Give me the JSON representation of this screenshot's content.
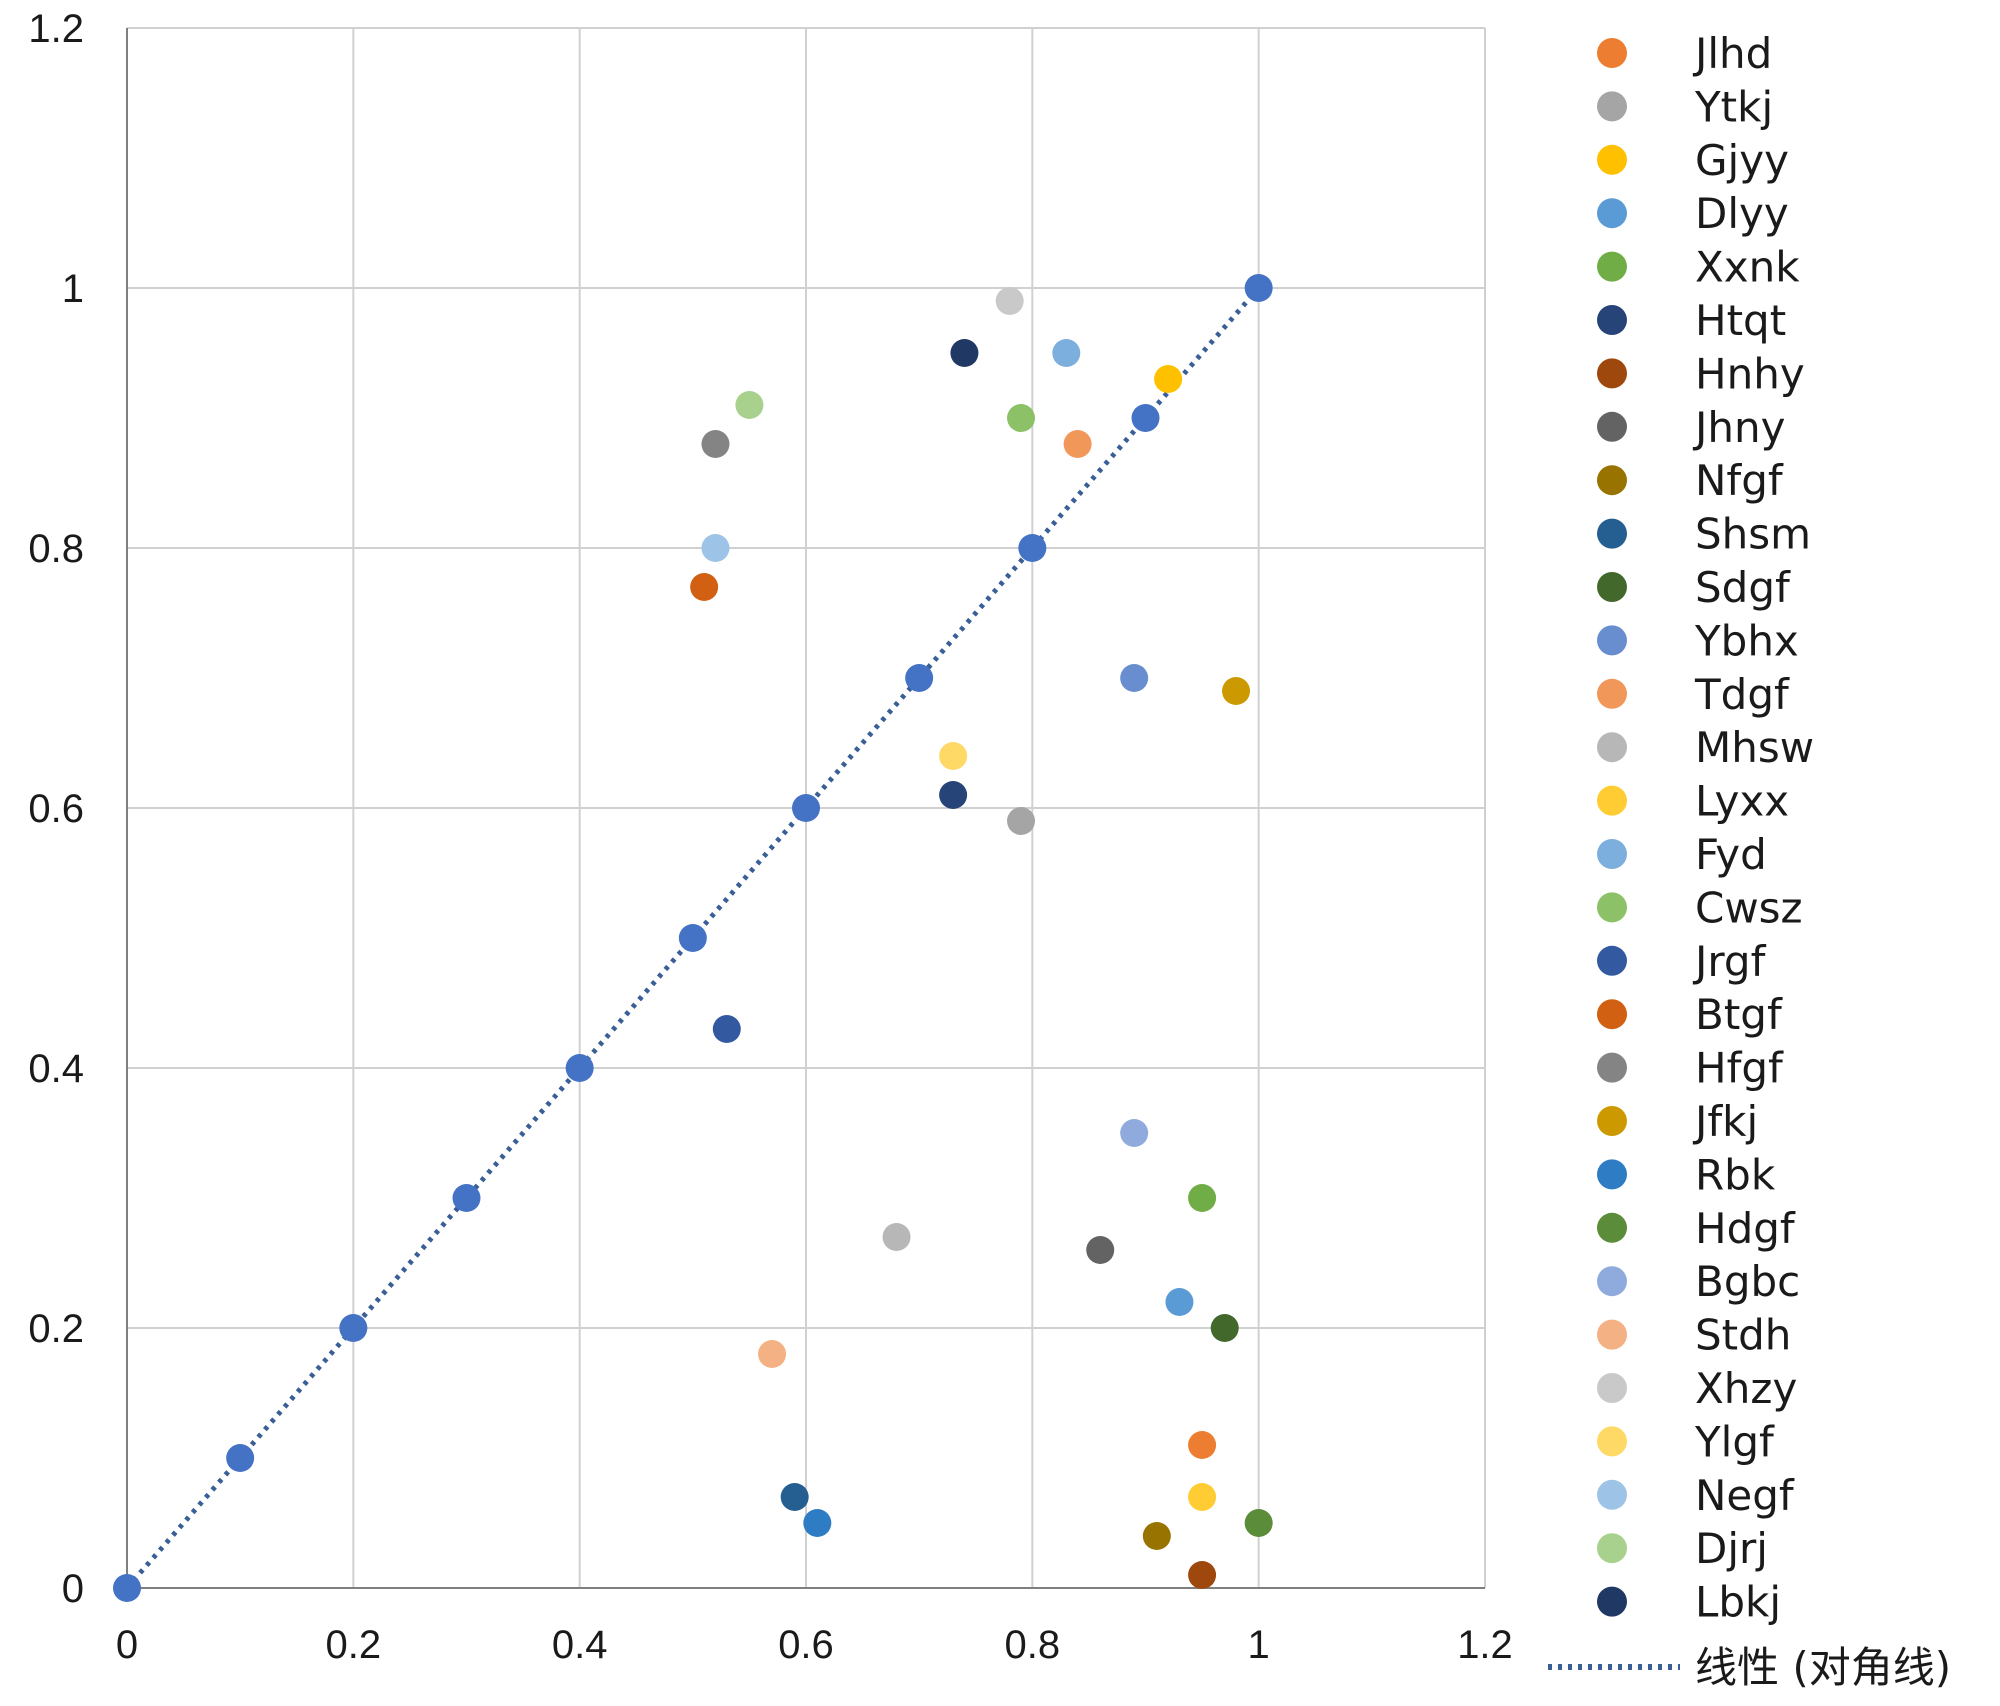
{
  "chart_data": {
    "type": "scatter",
    "xlim": [
      0,
      1.2
    ],
    "ylim": [
      0,
      1.2
    ],
    "x_ticks": [
      "0",
      "0.2",
      "0.4",
      "0.6",
      "0.8",
      "1",
      "1.2"
    ],
    "y_ticks": [
      "0",
      "0.2",
      "0.4",
      "0.6",
      "0.8",
      "1",
      "1.2"
    ],
    "grid": true,
    "legend_position": "right",
    "series": [
      {
        "name": "Jlhd",
        "color": "#ED7D31",
        "points": [
          [
            0.95,
            0.11
          ]
        ]
      },
      {
        "name": "Ytkj",
        "color": "#A5A5A5",
        "points": [
          [
            0.79,
            0.59
          ]
        ]
      },
      {
        "name": "Gjyy",
        "color": "#FFC000",
        "points": [
          [
            0.92,
            0.93
          ]
        ]
      },
      {
        "name": "Dlyy",
        "color": "#5B9BD5",
        "points": [
          [
            0.93,
            0.22
          ]
        ]
      },
      {
        "name": "Xxnk",
        "color": "#70AD47",
        "points": [
          [
            0.95,
            0.3
          ]
        ]
      },
      {
        "name": "Htqt",
        "color": "#264478",
        "points": [
          [
            0.73,
            0.61
          ]
        ]
      },
      {
        "name": "Hnhy",
        "color": "#9E480E",
        "points": [
          [
            0.95,
            0.01
          ]
        ]
      },
      {
        "name": "Jhny",
        "color": "#636363",
        "points": [
          [
            0.86,
            0.26
          ]
        ]
      },
      {
        "name": "Nfgf",
        "color": "#997300",
        "points": [
          [
            0.91,
            0.04
          ]
        ]
      },
      {
        "name": "Shsm",
        "color": "#255E91",
        "points": [
          [
            0.59,
            0.07
          ]
        ]
      },
      {
        "name": "Sdgf",
        "color": "#43682B",
        "points": [
          [
            0.97,
            0.2
          ]
        ]
      },
      {
        "name": "Ybhx",
        "color": "#698ED0",
        "points": [
          [
            0.89,
            0.7
          ]
        ]
      },
      {
        "name": "Tdgf",
        "color": "#F1975A",
        "points": [
          [
            0.84,
            0.88
          ]
        ]
      },
      {
        "name": "Mhsw",
        "color": "#B7B7B7",
        "points": [
          [
            0.68,
            0.27
          ]
        ]
      },
      {
        "name": "Lyxx",
        "color": "#FFCD33",
        "points": [
          [
            0.95,
            0.07
          ]
        ]
      },
      {
        "name": "Fyd",
        "color": "#7CAFDD",
        "points": [
          [
            0.83,
            0.95
          ]
        ]
      },
      {
        "name": "Cwsz",
        "color": "#8CC168",
        "points": [
          [
            0.79,
            0.9
          ]
        ]
      },
      {
        "name": "Jrgf",
        "color": "#335AA1",
        "points": [
          [
            0.53,
            0.43
          ]
        ]
      },
      {
        "name": "Btgf",
        "color": "#D26012",
        "points": [
          [
            0.51,
            0.77
          ]
        ]
      },
      {
        "name": "Hfgf",
        "color": "#848484",
        "points": [
          [
            0.52,
            0.88
          ]
        ]
      },
      {
        "name": "Jfkj",
        "color": "#CC9A00",
        "points": [
          [
            0.98,
            0.69
          ]
        ]
      },
      {
        "name": "Rbk",
        "color": "#2E7DC4",
        "points": [
          [
            0.61,
            0.05
          ]
        ]
      },
      {
        "name": "Hdgf",
        "color": "#5A8C39",
        "points": [
          [
            1.0,
            0.05
          ]
        ]
      },
      {
        "name": "Bgbc",
        "color": "#8FAADC",
        "points": [
          [
            0.89,
            0.35
          ]
        ]
      },
      {
        "name": "Stdh",
        "color": "#F4B183",
        "points": [
          [
            0.57,
            0.18
          ]
        ]
      },
      {
        "name": "Xhzy",
        "color": "#C9C9C9",
        "points": [
          [
            0.78,
            0.99
          ]
        ]
      },
      {
        "name": "Ylgf",
        "color": "#FFD966",
        "points": [
          [
            0.73,
            0.64
          ]
        ]
      },
      {
        "name": "Negf",
        "color": "#9DC3E6",
        "points": [
          [
            0.52,
            0.8
          ]
        ]
      },
      {
        "name": "Djrj",
        "color": "#A9D18E",
        "points": [
          [
            0.55,
            0.91
          ]
        ]
      },
      {
        "name": "Lbkj",
        "color": "#1F3864",
        "points": [
          [
            0.74,
            0.95
          ]
        ]
      }
    ],
    "diagonal": {
      "name": "线性 (对角线)",
      "color": "#4472C4",
      "line_color": "#3A5F96",
      "points": [
        [
          0,
          0
        ],
        [
          0.1,
          0.1
        ],
        [
          0.2,
          0.2
        ],
        [
          0.3,
          0.3
        ],
        [
          0.4,
          0.4
        ],
        [
          0.5,
          0.5
        ],
        [
          0.6,
          0.6
        ],
        [
          0.7,
          0.7
        ],
        [
          0.8,
          0.8
        ],
        [
          0.9,
          0.9
        ],
        [
          1.0,
          1.0
        ]
      ]
    }
  }
}
